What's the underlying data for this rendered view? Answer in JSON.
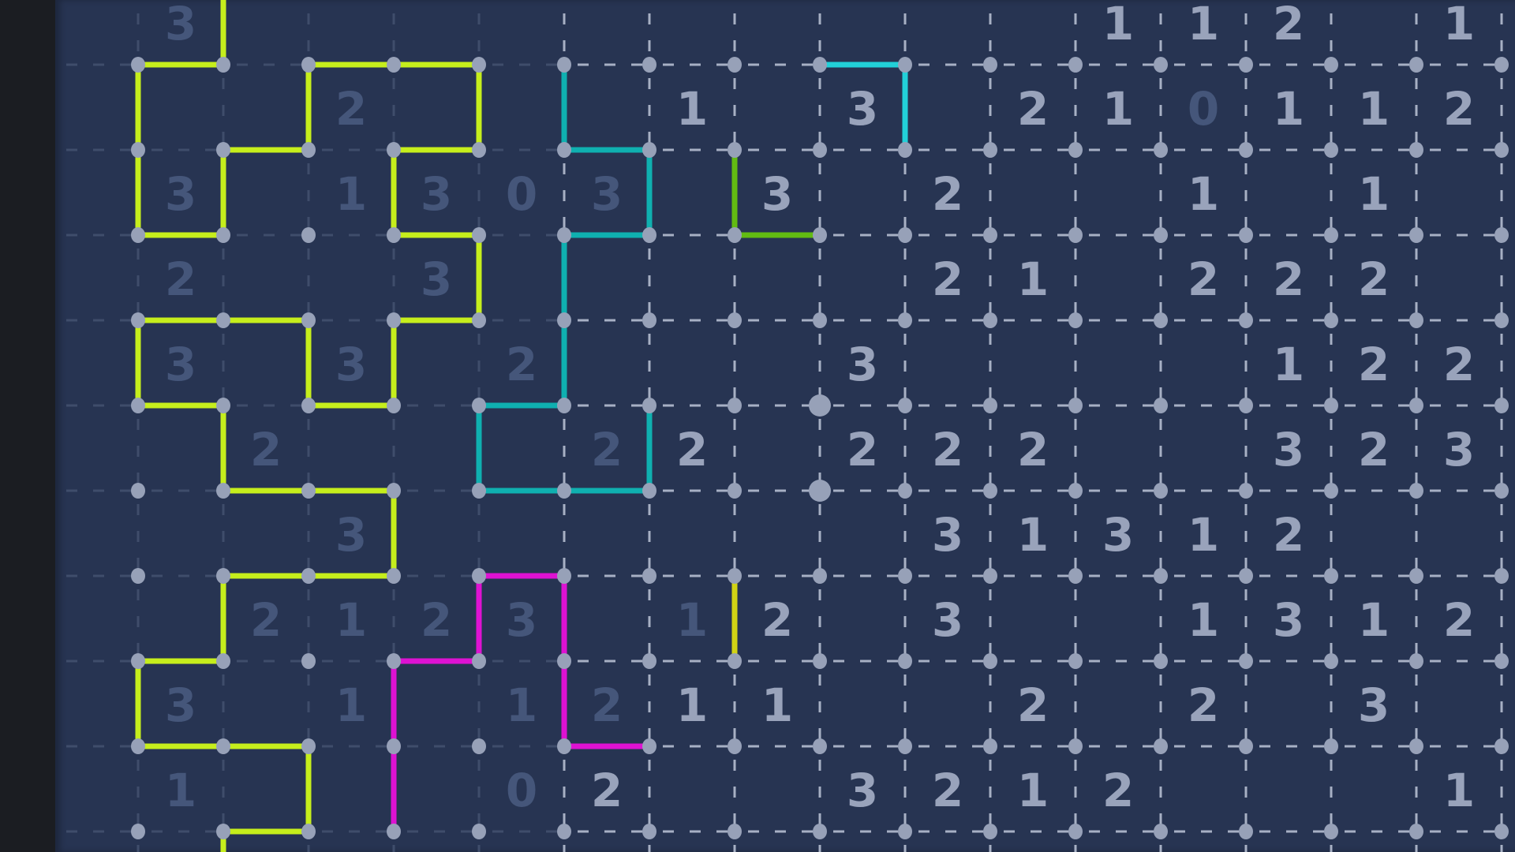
{
  "game": {
    "type": "slitherlink",
    "colors": {
      "background": "#273452",
      "sidebar": "#1b1d22",
      "dot": "#97a1b8",
      "clue_bright": "#99a3bb",
      "clue_dim": "#45567a",
      "grid_bright": "#a7b0c4",
      "grid_dim": "#3f4d6b"
    },
    "clue_rows": [
      {
        "row": -1,
        "cells": [
          [
            0,
            3,
            "dim"
          ],
          [
            11,
            1,
            "bright"
          ],
          [
            12,
            1,
            "bright"
          ],
          [
            13,
            2,
            "bright"
          ],
          [
            15,
            1,
            "bright"
          ]
        ]
      },
      {
        "row": 0,
        "cells": [
          [
            2,
            2,
            "dim"
          ],
          [
            6,
            1,
            "bright"
          ],
          [
            8,
            3,
            "bright"
          ],
          [
            10,
            2,
            "bright"
          ],
          [
            11,
            1,
            "bright"
          ],
          [
            12,
            0,
            "dim"
          ],
          [
            13,
            1,
            "bright"
          ],
          [
            14,
            1,
            "bright"
          ],
          [
            15,
            2,
            "bright"
          ]
        ]
      },
      {
        "row": 1,
        "cells": [
          [
            0,
            3,
            "dim"
          ],
          [
            2,
            1,
            "dim"
          ],
          [
            3,
            3,
            "dim"
          ],
          [
            4,
            0,
            "dim"
          ],
          [
            5,
            3,
            "dim"
          ],
          [
            7,
            3,
            "bright"
          ],
          [
            9,
            2,
            "bright"
          ],
          [
            12,
            1,
            "bright"
          ],
          [
            14,
            1,
            "bright"
          ]
        ]
      },
      {
        "row": 2,
        "cells": [
          [
            0,
            2,
            "dim"
          ],
          [
            3,
            3,
            "dim"
          ],
          [
            9,
            2,
            "bright"
          ],
          [
            10,
            1,
            "bright"
          ],
          [
            12,
            2,
            "bright"
          ],
          [
            13,
            2,
            "bright"
          ],
          [
            14,
            2,
            "bright"
          ]
        ]
      },
      {
        "row": 3,
        "cells": [
          [
            0,
            3,
            "dim"
          ],
          [
            2,
            3,
            "dim"
          ],
          [
            4,
            2,
            "dim"
          ],
          [
            8,
            3,
            "bright"
          ],
          [
            13,
            1,
            "bright"
          ],
          [
            14,
            2,
            "bright"
          ],
          [
            15,
            2,
            "bright"
          ]
        ]
      },
      {
        "row": 4,
        "cells": [
          [
            1,
            2,
            "dim"
          ],
          [
            5,
            2,
            "dim"
          ],
          [
            6,
            2,
            "bright"
          ],
          [
            8,
            2,
            "bright"
          ],
          [
            9,
            2,
            "bright"
          ],
          [
            10,
            2,
            "bright"
          ],
          [
            13,
            3,
            "bright"
          ],
          [
            14,
            2,
            "bright"
          ],
          [
            15,
            3,
            "bright"
          ]
        ]
      },
      {
        "row": 5,
        "cells": [
          [
            2,
            3,
            "dim"
          ],
          [
            9,
            3,
            "bright"
          ],
          [
            10,
            1,
            "bright"
          ],
          [
            11,
            3,
            "bright"
          ],
          [
            12,
            1,
            "bright"
          ],
          [
            13,
            2,
            "bright"
          ]
        ]
      },
      {
        "row": 6,
        "cells": [
          [
            1,
            2,
            "dim"
          ],
          [
            2,
            1,
            "dim"
          ],
          [
            3,
            2,
            "dim"
          ],
          [
            4,
            3,
            "dim"
          ],
          [
            6,
            1,
            "dim"
          ],
          [
            7,
            2,
            "bright"
          ],
          [
            9,
            3,
            "bright"
          ],
          [
            12,
            1,
            "bright"
          ],
          [
            13,
            3,
            "bright"
          ],
          [
            14,
            1,
            "bright"
          ],
          [
            15,
            2,
            "bright"
          ]
        ]
      },
      {
        "row": 7,
        "cells": [
          [
            0,
            3,
            "dim"
          ],
          [
            2,
            1,
            "dim"
          ],
          [
            4,
            1,
            "dim"
          ],
          [
            5,
            2,
            "dim"
          ],
          [
            6,
            1,
            "bright"
          ],
          [
            7,
            1,
            "bright"
          ],
          [
            10,
            2,
            "bright"
          ],
          [
            12,
            2,
            "bright"
          ],
          [
            14,
            3,
            "bright"
          ]
        ]
      },
      {
        "row": 8,
        "cells": [
          [
            0,
            1,
            "dim"
          ],
          [
            4,
            0,
            "dim"
          ],
          [
            5,
            2,
            "bright"
          ],
          [
            8,
            3,
            "bright"
          ],
          [
            9,
            2,
            "bright"
          ],
          [
            10,
            1,
            "bright"
          ],
          [
            11,
            2,
            "bright"
          ],
          [
            15,
            1,
            "bright"
          ]
        ]
      }
    ],
    "loops": [
      {
        "color": "#c6ee1c",
        "edges": [
          [
            1,
            -1,
            1,
            0
          ],
          [
            0,
            0,
            1,
            0
          ],
          [
            0,
            0,
            0,
            1
          ],
          [
            0,
            1,
            0,
            2
          ],
          [
            0,
            2,
            1,
            2
          ],
          [
            1,
            1,
            1,
            2
          ],
          [
            1,
            1,
            2,
            1
          ],
          [
            2,
            0,
            2,
            1
          ],
          [
            2,
            0,
            3,
            0
          ],
          [
            3,
            0,
            4,
            0
          ],
          [
            4,
            0,
            4,
            1
          ],
          [
            3,
            1,
            4,
            1
          ],
          [
            3,
            1,
            3,
            2
          ],
          [
            3,
            2,
            4,
            2
          ],
          [
            4,
            2,
            4,
            3
          ],
          [
            3,
            3,
            4,
            3
          ],
          [
            3,
            3,
            3,
            4
          ],
          [
            2,
            4,
            3,
            4
          ],
          [
            2,
            3,
            2,
            4
          ],
          [
            0,
            3,
            1,
            3
          ],
          [
            1,
            3,
            2,
            3
          ],
          [
            0,
            3,
            0,
            4
          ],
          [
            0,
            4,
            1,
            4
          ],
          [
            1,
            4,
            1,
            5
          ],
          [
            1,
            5,
            2,
            5
          ],
          [
            2,
            5,
            3,
            5
          ],
          [
            3,
            5,
            3,
            6
          ],
          [
            1,
            6,
            2,
            6
          ],
          [
            2,
            6,
            3,
            6
          ],
          [
            1,
            6,
            1,
            7
          ],
          [
            0,
            7,
            1,
            7
          ],
          [
            0,
            7,
            0,
            8
          ],
          [
            0,
            8,
            1,
            8
          ],
          [
            1,
            8,
            2,
            8
          ],
          [
            2,
            8,
            2,
            9
          ],
          [
            1,
            9,
            2,
            9
          ],
          [
            1,
            9,
            1,
            10
          ]
        ]
      },
      {
        "color": "#0fb0b0",
        "edges": [
          [
            5,
            0,
            5,
            1
          ],
          [
            5,
            1,
            6,
            1
          ],
          [
            6,
            1,
            6,
            2
          ],
          [
            5,
            2,
            6,
            2
          ],
          [
            5,
            2,
            5,
            3
          ],
          [
            5,
            3,
            5,
            4
          ],
          [
            4,
            4,
            5,
            4
          ],
          [
            4,
            4,
            4,
            5
          ],
          [
            4,
            5,
            5,
            5
          ],
          [
            5,
            5,
            6,
            5
          ],
          [
            6,
            4,
            6,
            5
          ]
        ]
      },
      {
        "color": "#22d0d8",
        "edges": [
          [
            8,
            0,
            9,
            0
          ],
          [
            9,
            0,
            9,
            1
          ]
        ]
      },
      {
        "color": "#62bc12",
        "edges": [
          [
            7,
            1,
            7,
            2
          ],
          [
            7,
            2,
            8,
            2
          ]
        ]
      },
      {
        "color": "#de12d2",
        "edges": [
          [
            4,
            6,
            5,
            6
          ],
          [
            4,
            6,
            4,
            7
          ],
          [
            3,
            7,
            4,
            7
          ],
          [
            3,
            7,
            3,
            8
          ],
          [
            3,
            8,
            3,
            9
          ],
          [
            5,
            6,
            5,
            7
          ],
          [
            5,
            7,
            5,
            8
          ],
          [
            5,
            8,
            6,
            8
          ]
        ]
      },
      {
        "color": "#d2d414",
        "edges": [
          [
            7,
            6,
            7,
            7
          ]
        ]
      }
    ],
    "highlighted_dots": [
      [
        8,
        4
      ],
      [
        8,
        5
      ]
    ]
  }
}
